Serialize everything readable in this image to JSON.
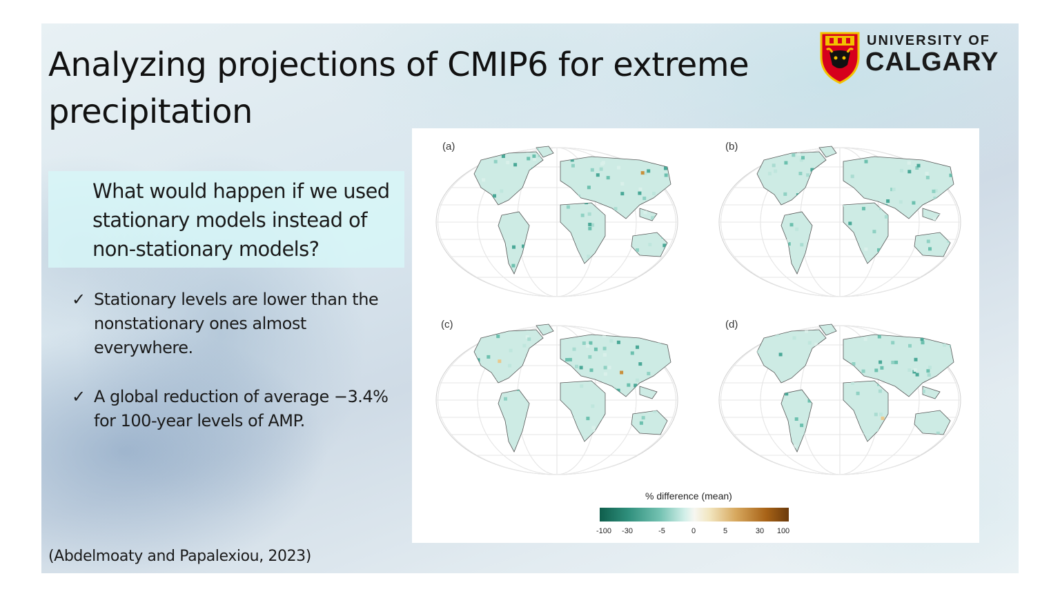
{
  "slide": {
    "title": "Analyzing projections of CMIP6 for extreme precipitation",
    "logo": {
      "line1": "UNIVERSITY OF",
      "line2": "CALGARY",
      "icon": "university-crest-icon"
    },
    "question": "What would happen if we used stationary models instead of non-stationary models?",
    "bullets": [
      {
        "check": "✓",
        "text": "Stationary levels are lower than the nonstationary ones almost everywhere."
      },
      {
        "check": "✓",
        "text": "A global reduction of average −3.4% for 100-year levels of AMP."
      }
    ],
    "citation": "(Abdelmoaty and Papalexiou, 2023)"
  },
  "figure": {
    "panels": [
      {
        "label": "(a)"
      },
      {
        "label": "(b)"
      },
      {
        "label": "(c)"
      },
      {
        "label": "(d)"
      }
    ],
    "colorbar": {
      "title": "% difference (mean)",
      "ticks": [
        "-100",
        "-30",
        "-5",
        "0",
        "5",
        "30",
        "100"
      ],
      "colors": [
        "#0f5e4c",
        "#74c2b2",
        "#f6f6f1",
        "#d7a85e",
        "#6b3a0b"
      ]
    }
  }
}
